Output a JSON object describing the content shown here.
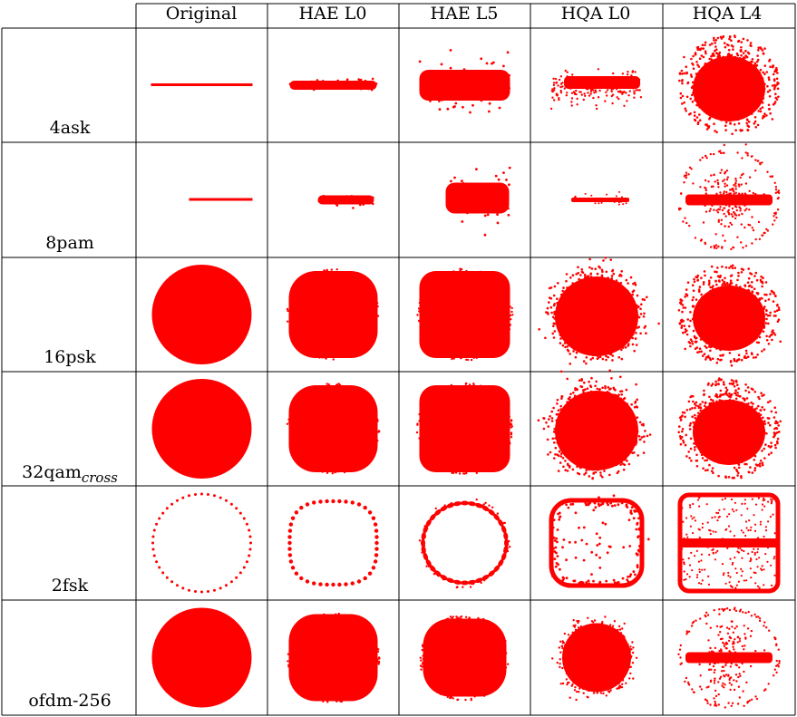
{
  "table": {
    "columns": [
      "",
      "Original",
      "HAE L0",
      "HAE L5",
      "HQA L0",
      "HQA L4"
    ],
    "rows": [
      {
        "label": "4ask",
        "label_italic_part": ""
      },
      {
        "label": "8pam",
        "label_italic_part": ""
      },
      {
        "label": "16psk",
        "label_italic_part": ""
      },
      {
        "label": "32qam",
        "label_italic_part": "cross"
      },
      {
        "label": "2fsk",
        "label_italic_part": ""
      },
      {
        "label": "ofdm-256",
        "label_italic_part": ""
      }
    ]
  },
  "colors": {
    "marker": "#ff0000",
    "grid": "#000000",
    "background": "#ffffff"
  },
  "cells": [
    [
      "line",
      "bar_thin",
      "bar_thick",
      "bar_noisy",
      "ring_cloud"
    ],
    [
      "line_right",
      "bar_thin_right",
      "bar_thick_right",
      "bar_dots",
      "ring_cross"
    ],
    [
      "disk",
      "rounded_square",
      "rounded_square_large",
      "noisy_blob",
      "ring_cloud"
    ],
    [
      "disk",
      "rounded_square",
      "rounded_square_large",
      "noisy_blob",
      "ring_cloud"
    ],
    [
      "dotted_circle",
      "dotted_rounded",
      "ring_blobs",
      "noisy_frame",
      "square_frame_bar"
    ],
    [
      "disk",
      "rounded_square",
      "noisy_rounded",
      "noisy_disk",
      "ring_cross"
    ]
  ]
}
